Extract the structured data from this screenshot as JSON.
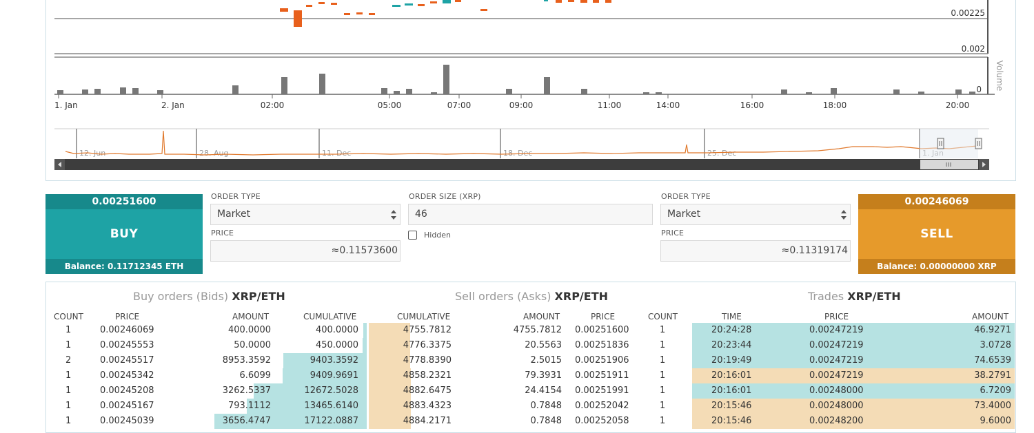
{
  "chart": {
    "price_axis": [
      "0.00225",
      "0.002"
    ],
    "volume_axis": [
      "0"
    ],
    "volume_title": "Volume",
    "x_ticks": [
      "1. Jan",
      "2. Jan",
      "02:00",
      "05:00",
      "07:00",
      "09:00",
      "11:00",
      "14:00",
      "16:00",
      "18:00",
      "20:00"
    ],
    "navigator_ticks": [
      "12. Jun",
      "28. Aug",
      "11. Dec",
      "18. Dec",
      "25. Dec",
      "1. Jan"
    ],
    "colors": {
      "up": "#1ea3a5",
      "down": "#e8601c",
      "volume": "#777777",
      "navigator_line": "#e0782b"
    }
  },
  "order_form": {
    "buy": {
      "price": "0.00251600",
      "label": "BUY",
      "balance": "Balance: 0.11712345 ETH"
    },
    "sell": {
      "price": "0.00246069",
      "label": "SELL",
      "balance": "Balance: 0.00000000 XRP"
    },
    "buy_order_type_label": "ORDER TYPE",
    "buy_order_type_value": "Market",
    "buy_price_label": "PRICE",
    "buy_price_value": "≈0.11573600",
    "size_label": "ORDER SIZE (XRP)",
    "size_value": "46",
    "hidden_label": "Hidden",
    "sell_order_type_label": "ORDER TYPE",
    "sell_order_type_value": "Market",
    "sell_price_label": "PRICE",
    "sell_price_value": "≈0.11319174"
  },
  "bids": {
    "title": "Buy orders (Bids)",
    "pair": "XRP/ETH",
    "headers": [
      "COUNT",
      "PRICE",
      "AMOUNT",
      "CUMULATIVE"
    ],
    "rows": [
      {
        "count": "1",
        "price": "0.00246069",
        "amount": "400.0000",
        "cumulative": "400.0000",
        "depth": 0.023
      },
      {
        "count": "1",
        "price": "0.00245553",
        "amount": "50.0000",
        "cumulative": "450.0000",
        "depth": 0.026
      },
      {
        "count": "2",
        "price": "0.00245517",
        "amount": "8953.3592",
        "cumulative": "9403.3592",
        "depth": 0.549
      },
      {
        "count": "1",
        "price": "0.00245342",
        "amount": "6.6099",
        "cumulative": "9409.9691",
        "depth": 0.55
      },
      {
        "count": "1",
        "price": "0.00245208",
        "amount": "3262.5337",
        "cumulative": "12672.5028",
        "depth": 0.74
      },
      {
        "count": "1",
        "price": "0.00245167",
        "amount": "793.1112",
        "cumulative": "13465.6140",
        "depth": 0.786
      },
      {
        "count": "1",
        "price": "0.00245039",
        "amount": "3656.4747",
        "cumulative": "17122.0887",
        "depth": 1.0
      }
    ]
  },
  "asks": {
    "title": "Sell orders (Asks)",
    "pair": "XRP/ETH",
    "headers": [
      "CUMULATIVE",
      "AMOUNT",
      "PRICE",
      "COUNT"
    ],
    "rows": [
      {
        "cumulative": "4755.7812",
        "amount": "4755.7812",
        "price": "0.00251600",
        "count": "1",
        "depth": 0.278
      },
      {
        "cumulative": "4776.3375",
        "amount": "20.5563",
        "price": "0.00251836",
        "count": "1",
        "depth": 0.279
      },
      {
        "cumulative": "4778.8390",
        "amount": "2.5015",
        "price": "0.00251906",
        "count": "1",
        "depth": 0.279
      },
      {
        "cumulative": "4858.2321",
        "amount": "79.3931",
        "price": "0.00251911",
        "count": "1",
        "depth": 0.284
      },
      {
        "cumulative": "4882.6475",
        "amount": "24.4154",
        "price": "0.00251991",
        "count": "1",
        "depth": 0.285
      },
      {
        "cumulative": "4883.4323",
        "amount": "0.7848",
        "price": "0.00252042",
        "count": "1",
        "depth": 0.285
      },
      {
        "cumulative": "4884.2171",
        "amount": "0.7848",
        "price": "0.00252058",
        "count": "1",
        "depth": 0.285
      }
    ]
  },
  "trades": {
    "title": "Trades",
    "pair": "XRP/ETH",
    "headers": [
      "TIME",
      "PRICE",
      "AMOUNT"
    ],
    "rows": [
      {
        "time": "20:24:28",
        "price": "0.00247219",
        "amount": "46.9271",
        "side": "buy"
      },
      {
        "time": "20:23:44",
        "price": "0.00247219",
        "amount": "3.0728",
        "side": "buy"
      },
      {
        "time": "20:19:49",
        "price": "0.00247219",
        "amount": "74.6539",
        "side": "buy"
      },
      {
        "time": "20:16:01",
        "price": "0.00247219",
        "amount": "38.2791",
        "side": "sell"
      },
      {
        "time": "20:16:01",
        "price": "0.00248000",
        "amount": "6.7209",
        "side": "buy"
      },
      {
        "time": "20:15:46",
        "price": "0.00248000",
        "amount": "73.4000",
        "side": "sell"
      },
      {
        "time": "20:15:46",
        "price": "0.00248200",
        "amount": "9.6000",
        "side": "sell"
      }
    ]
  }
}
